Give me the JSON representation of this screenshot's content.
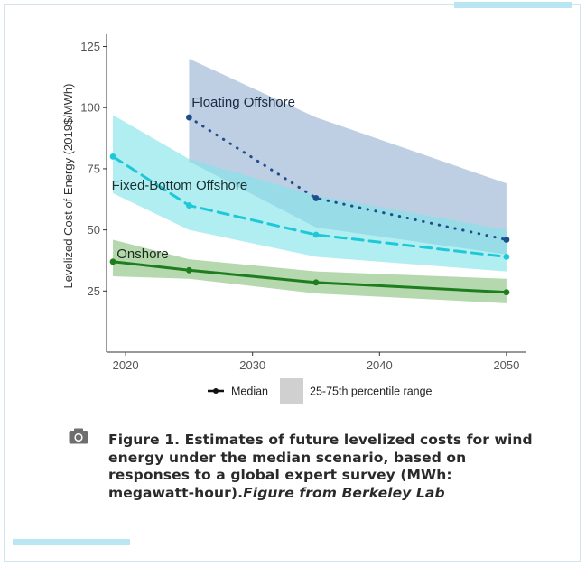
{
  "colors": {
    "frame": "#cfe6ee",
    "accent": "#b9e6f2",
    "floating": "#1f4e8c",
    "floating_band": "#9fb8d6",
    "fixed": "#1fc8d6",
    "fixed_band": "#7fe3ea",
    "onshore": "#1e7d1e",
    "onshore_band": "#98c98f",
    "legend_band": "#d0d0d0",
    "axis_text": "#555555"
  },
  "chart_data": {
    "type": "line",
    "xlabel": "",
    "ylabel": "Levelized Cost of Energy (2019$/MWh)",
    "xlim": [
      2018.5,
      2051.5
    ],
    "ylim": [
      0,
      130
    ],
    "xticks": [
      2020,
      2030,
      2040,
      2050
    ],
    "yticks": [
      25,
      50,
      75,
      100,
      125
    ],
    "grid": false,
    "legend": {
      "placement": "bottom",
      "median_label": "Median",
      "band_label": "25-75th percentile range"
    },
    "series": [
      {
        "name": "Floating Offshore",
        "key": "floating",
        "style": "dotted",
        "x": [
          2025,
          2035,
          2050
        ],
        "median": [
          96,
          63,
          46
        ],
        "p25": [
          78,
          51,
          40
        ],
        "p75": [
          120,
          96,
          69
        ]
      },
      {
        "name": "Fixed-Bottom Offshore",
        "key": "fixed",
        "style": "dashed",
        "x": [
          2019,
          2025,
          2035,
          2050
        ],
        "median": [
          80,
          60,
          48,
          39
        ],
        "p25": [
          65,
          50,
          39,
          33
        ],
        "p75": [
          97,
          79,
          64,
          50
        ]
      },
      {
        "name": "Onshore",
        "key": "onshore",
        "style": "solid",
        "x": [
          2019,
          2025,
          2035,
          2050
        ],
        "median": [
          37,
          33.5,
          28.5,
          24.5
        ],
        "p25": [
          31,
          30,
          24,
          20
        ],
        "p75": [
          46,
          38,
          33,
          30
        ]
      }
    ]
  },
  "caption": {
    "bold_text": "Figure 1. Estimates of future levelized costs for wind energy under the median scenario, based on responses to a global expert survey (MWh: megawatt-hour).",
    "italic_text": "Figure from Berkeley Lab"
  }
}
